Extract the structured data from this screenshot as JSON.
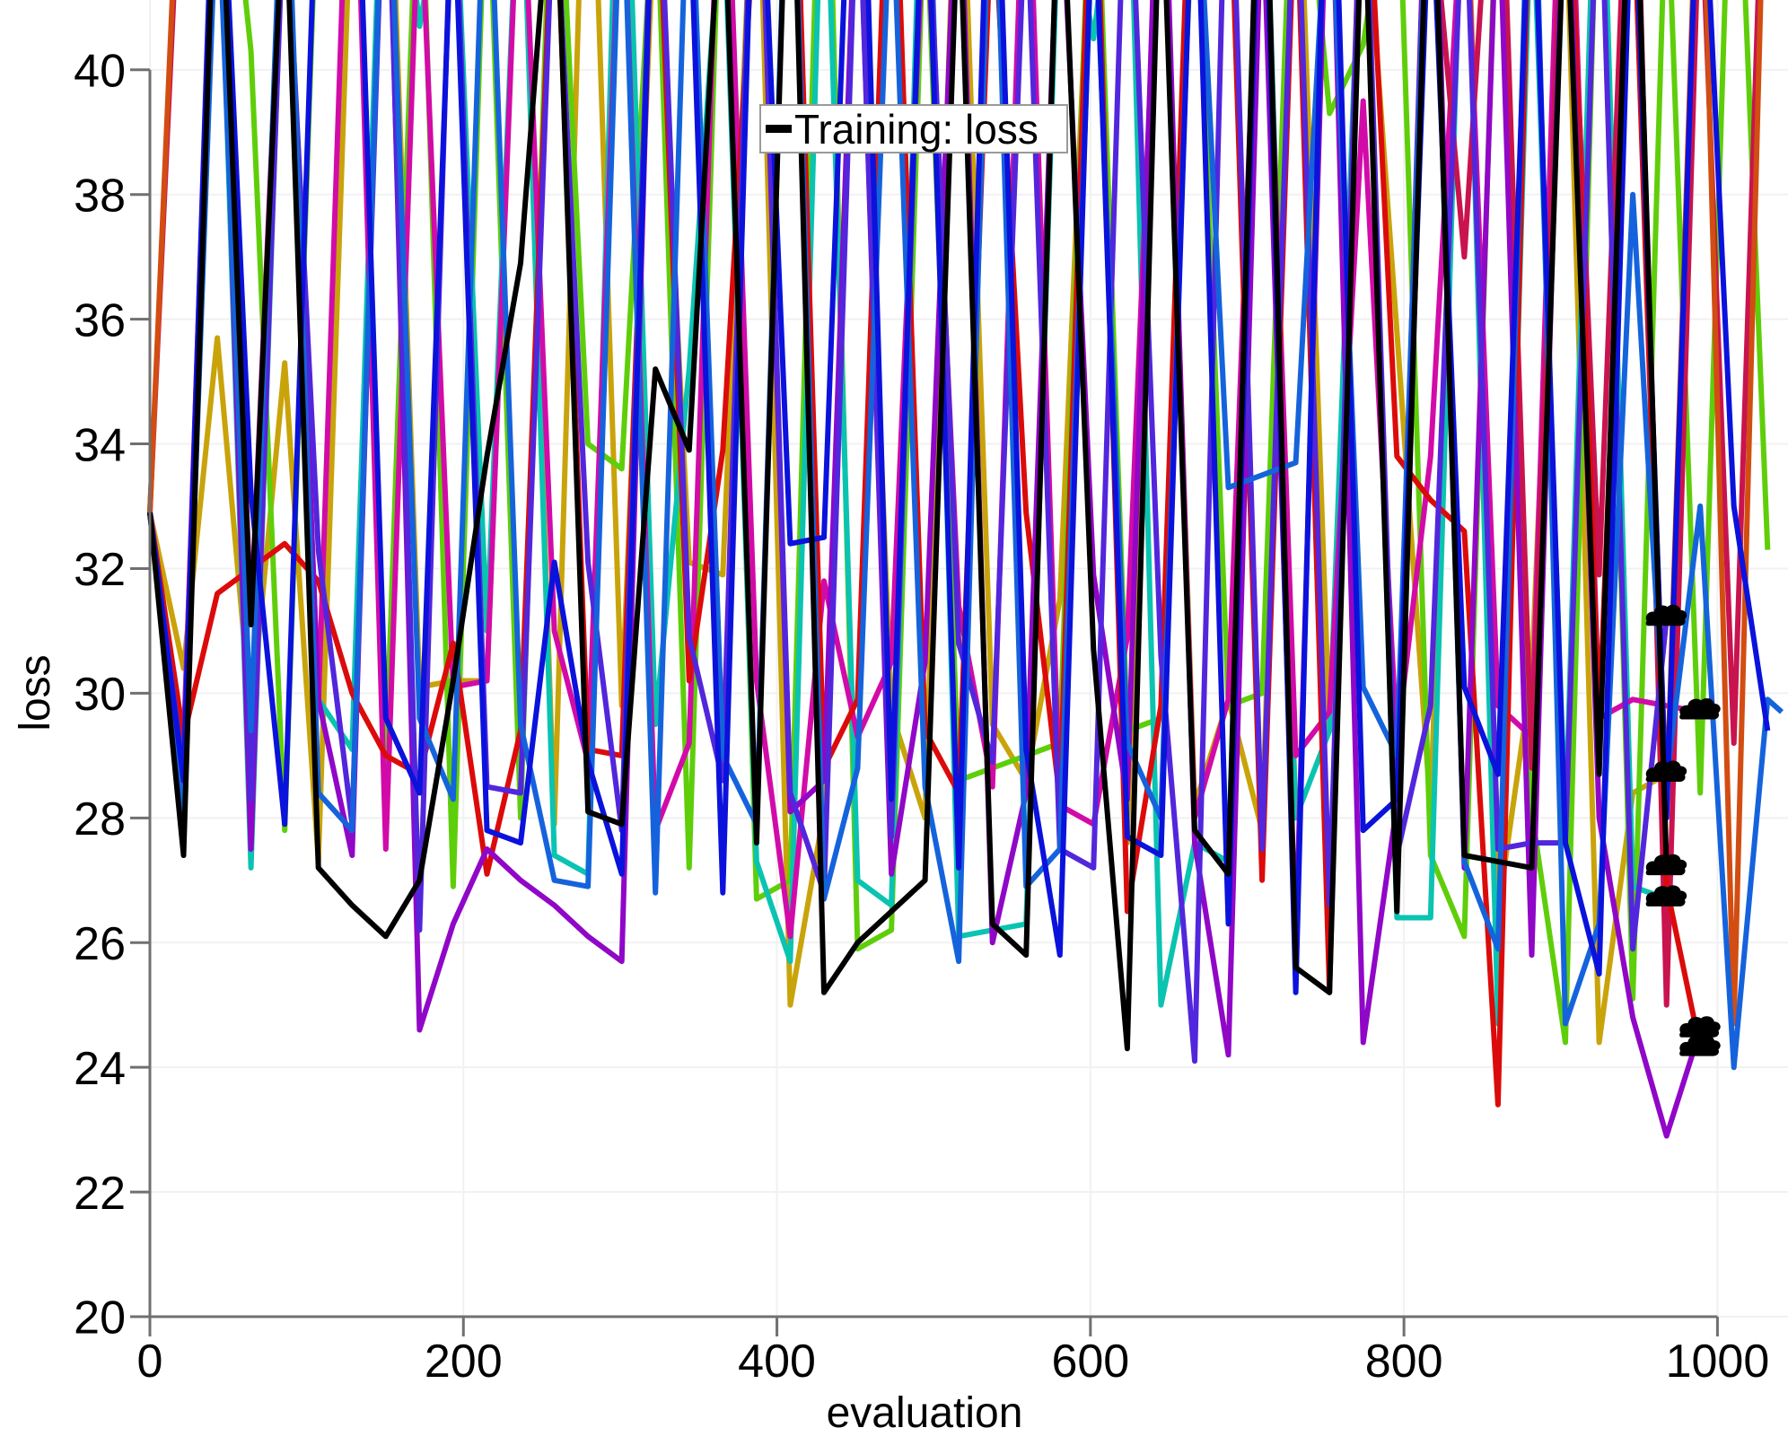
{
  "figure": {
    "background": "#ffffff"
  },
  "legend": {
    "label": "Training: loss",
    "sample_color": "#000000"
  },
  "axes": {
    "xlabel": "evaluation",
    "ylabel": "loss",
    "xticks": [
      0,
      200,
      400,
      600,
      800,
      1000
    ],
    "yticks": [
      20,
      22,
      24,
      26,
      28,
      30,
      32,
      34,
      36,
      38,
      40
    ],
    "xlim": [
      0,
      1045
    ],
    "ylim": [
      20,
      41.12
    ],
    "spine_color": "#707070",
    "grid_color": "#f1f1f1",
    "tick_label_color": "#000000"
  },
  "chart_data": {
    "type": "line",
    "title": "",
    "xlabel": "evaluation",
    "ylabel": "loss",
    "legend_position": "top-center",
    "grid": true,
    "x_step": 21.5,
    "line_width": 6,
    "start_value": 32.9,
    "end_marker": {
      "shape": "cloud",
      "color": "#000000"
    },
    "series": [
      {
        "name": "run-gold",
        "color": "#c9a30a",
        "cloud_end": true,
        "y": [
          32.9,
          30.4,
          35.7,
          29.6,
          35.3,
          27.3,
          43.4,
          45.7,
          30.1,
          30.2,
          30.2,
          44.3,
          27.9,
          46.1,
          29.8,
          43.0,
          32.1,
          31.9,
          44.8,
          25.0,
          28.1,
          43.6,
          29.7,
          28.0,
          45.2,
          29.5,
          28.6,
          31.5,
          43.9,
          27.6,
          44.5,
          28.2,
          29.9,
          27.8,
          45.0,
          29.4,
          43.3,
          35.8,
          28.1,
          44.7,
          26.5,
          30.3,
          43.1,
          24.4,
          28.4,
          28.7
        ]
      },
      {
        "name": "run-green",
        "color": "#5fce0a",
        "cloud_end": false,
        "y": [
          32.9,
          27.7,
          45.5,
          40.3,
          27.8,
          43.7,
          46.1,
          28.9,
          44.3,
          26.9,
          43.9,
          28.0,
          45.0,
          34.0,
          33.6,
          43.4,
          27.2,
          44.6,
          26.7,
          27.0,
          46.4,
          25.9,
          26.2,
          43.1,
          28.6,
          28.8,
          29.0,
          29.2,
          44.9,
          29.4,
          29.6,
          43.6,
          29.8,
          30.0,
          45.2,
          39.3,
          40.4,
          44.0,
          27.4,
          26.1,
          43.8,
          28.1,
          24.4,
          44.5,
          25.1,
          43.3,
          28.4,
          45.7,
          32.3
        ]
      },
      {
        "name": "run-cyan",
        "color": "#0ac3b1",
        "cloud_end": true,
        "y": [
          32.9,
          29.2,
          44.0,
          27.2,
          43.5,
          29.9,
          29.1,
          45.5,
          40.7,
          43.8,
          31.0,
          44.2,
          27.4,
          27.1,
          46.3,
          29.5,
          35.2,
          43.1,
          27.3,
          25.7,
          44.6,
          27.0,
          26.6,
          45.9,
          26.1,
          26.2,
          26.3,
          43.4,
          40.5,
          44.9,
          25.0,
          27.6,
          27.3,
          45.1,
          28.0,
          29.4,
          43.7,
          26.4,
          26.4,
          44.4,
          24.7,
          43.2,
          27.9,
          45.6,
          26.9,
          26.7
        ]
      },
      {
        "name": "run-magenta",
        "color": "#d20ba8",
        "cloud_end": true,
        "y": [
          32.9,
          29.1,
          44.8,
          31.2,
          43.5,
          29.8,
          45.9,
          27.5,
          43.2,
          30.1,
          30.2,
          44.1,
          31.0,
          28.9,
          43.7,
          27.8,
          29.2,
          45.4,
          30.2,
          26.1,
          31.8,
          29.3,
          30.5,
          43.0,
          31.4,
          28.5,
          44.6,
          28.2,
          27.9,
          30.9,
          43.9,
          28.0,
          29.9,
          44.2,
          29.0,
          29.7,
          39.5,
          29.2,
          33.8,
          43.4,
          29.8,
          29.3,
          46.2,
          29.6,
          29.9,
          29.8,
          29.7
        ]
      },
      {
        "name": "run-crimson",
        "color": "#c9134f",
        "cloud_end": false,
        "y": [
          32.9,
          44.6,
          46.2,
          43.1,
          45.5,
          47.0,
          44.2,
          46.6,
          43.8,
          45.1,
          44.4,
          47.3,
          43.2,
          46.0,
          45.7,
          44.8,
          43.5,
          47.1,
          45.3,
          46.4,
          44.0,
          43.6,
          45.9,
          47.2,
          43.4,
          44.7,
          46.1,
          43.9,
          45.0,
          44.3,
          47.4,
          43.7,
          46.5,
          44.1,
          45.6,
          43.3,
          46.3,
          44.9,
          43.0,
          37.0,
          45.4,
          28.8,
          44.5,
          31.9,
          46.0,
          25.0,
          43.2,
          29.2,
          45.8
        ]
      },
      {
        "name": "run-orangered",
        "color": "#d24d12",
        "cloud_end": false,
        "y": [
          32.9,
          45.3,
          43.4,
          46.1,
          44.7,
          43.0,
          47.2,
          45.6,
          43.9,
          46.4,
          44.1,
          45.8,
          47.0,
          43.3,
          44.6,
          46.7,
          43.1,
          45.2,
          44.9,
          46.0,
          43.7,
          47.4,
          44.3,
          45.5,
          43.2,
          46.8,
          45.1,
          43.6,
          47.1,
          44.0,
          45.9,
          43.5,
          46.2,
          44.8,
          43.8,
          45.0,
          46.6,
          43.2,
          44.4,
          45.7,
          43.6,
          46.3,
          44.2,
          47.3,
          43.0,
          28.2,
          44.9,
          24.7,
          45.4
        ]
      },
      {
        "name": "run-red",
        "color": "#dc0b0b",
        "cloud_end": true,
        "y": [
          32.9,
          29.3,
          31.6,
          32.0,
          32.4,
          31.8,
          30.0,
          29.0,
          28.7,
          30.8,
          27.1,
          29.4,
          43.6,
          29.1,
          29.0,
          44.2,
          30.2,
          33.9,
          43.1,
          46.5,
          28.8,
          29.9,
          45.3,
          29.4,
          28.4,
          43.0,
          32.9,
          28.3,
          44.7,
          26.5,
          29.8,
          45.6,
          44.1,
          27.0,
          43.3,
          25.2,
          44.8,
          33.8,
          33.1,
          32.6,
          23.4,
          44.4,
          45.0,
          29.5,
          43.2,
          26.9,
          24.3
        ]
      },
      {
        "name": "run-purple",
        "color": "#9007c7",
        "cloud_end": true,
        "y": [
          32.9,
          28.3,
          44.4,
          27.5,
          43.6,
          29.9,
          27.4,
          45.1,
          24.6,
          26.3,
          27.5,
          27.0,
          26.6,
          26.1,
          25.7,
          44.9,
          43.2,
          28.8,
          45.6,
          28.1,
          28.6,
          43.8,
          27.1,
          30.5,
          44.0,
          26.0,
          28.4,
          43.5,
          31.9,
          28.3,
          45.3,
          27.6,
          24.2,
          43.1,
          26.0,
          44.7,
          24.4,
          28.2,
          45.8,
          27.2,
          43.3,
          25.8,
          44.1,
          28.0,
          24.8,
          22.9,
          24.6
        ]
      },
      {
        "name": "run-indigo",
        "color": "#5226dc",
        "cloud_end": true,
        "y": [
          32.9,
          28.7,
          45.4,
          28.3,
          43.1,
          32.3,
          27.9,
          44.5,
          26.2,
          43.8,
          28.5,
          28.4,
          43.3,
          32.1,
          27.8,
          44.9,
          30.9,
          28.6,
          45.7,
          28.4,
          26.8,
          43.6,
          27.7,
          44.1,
          30.8,
          28.9,
          43.0,
          27.5,
          27.2,
          44.6,
          30.6,
          24.1,
          45.2,
          27.5,
          43.9,
          26.6,
          44.3,
          27.4,
          29.8,
          43.5,
          27.5,
          27.6,
          27.6,
          44.0,
          25.9,
          31.2
        ]
      },
      {
        "name": "run-royalblue",
        "color": "#1563dc",
        "cloud_end": false,
        "x_last": 1041,
        "y": [
          32.9,
          28.1,
          43.2,
          29.4,
          44.6,
          28.4,
          27.8,
          45.0,
          29.6,
          28.3,
          44.4,
          29.5,
          27.0,
          26.9,
          43.7,
          26.8,
          44.1,
          29.0,
          27.9,
          45.5,
          26.7,
          28.8,
          43.3,
          28.5,
          25.7,
          44.8,
          26.9,
          27.5,
          43.0,
          29.2,
          28.0,
          44.2,
          33.3,
          33.5,
          33.7,
          43.6,
          30.1,
          29.0,
          44.9,
          27.3,
          25.9,
          45.3,
          24.7,
          26.3,
          38.0,
          28.6,
          33.0,
          24.0,
          29.9,
          29.7
        ]
      },
      {
        "name": "run-blue",
        "color": "#0b12dc",
        "cloud_end": false,
        "y": [
          32.9,
          28.6,
          45.2,
          33.2,
          27.9,
          44.1,
          46.3,
          29.6,
          28.4,
          43.2,
          27.8,
          27.6,
          32.1,
          28.9,
          27.1,
          44.6,
          43.1,
          26.8,
          45.4,
          32.4,
          32.5,
          47.1,
          28.3,
          44.2,
          27.2,
          46.0,
          29.1,
          25.8,
          43.5,
          27.7,
          27.4,
          44.3,
          26.3,
          45.1,
          25.2,
          46.2,
          27.8,
          28.3,
          43.4,
          30.1,
          28.7,
          44.0,
          27.6,
          25.5,
          43.8,
          28.0,
          44.5,
          33.0,
          29.4
        ]
      },
      {
        "name": "run-black",
        "color": "#000000",
        "cloud_end": true,
        "y": [
          32.9,
          27.4,
          44.7,
          31.1,
          43.3,
          27.2,
          26.6,
          26.1,
          27.0,
          30.2,
          33.8,
          36.9,
          43.9,
          28.1,
          27.9,
          35.2,
          33.9,
          43.5,
          27.6,
          45.3,
          25.2,
          26.0,
          26.5,
          27.0,
          43.0,
          26.3,
          25.8,
          44.1,
          30.7,
          24.3,
          43.7,
          27.8,
          27.1,
          45.8,
          25.6,
          25.2,
          43.4,
          26.5,
          44.9,
          27.4,
          27.3,
          27.2,
          43.2,
          28.7,
          45.0,
          27.2
        ]
      }
    ]
  }
}
